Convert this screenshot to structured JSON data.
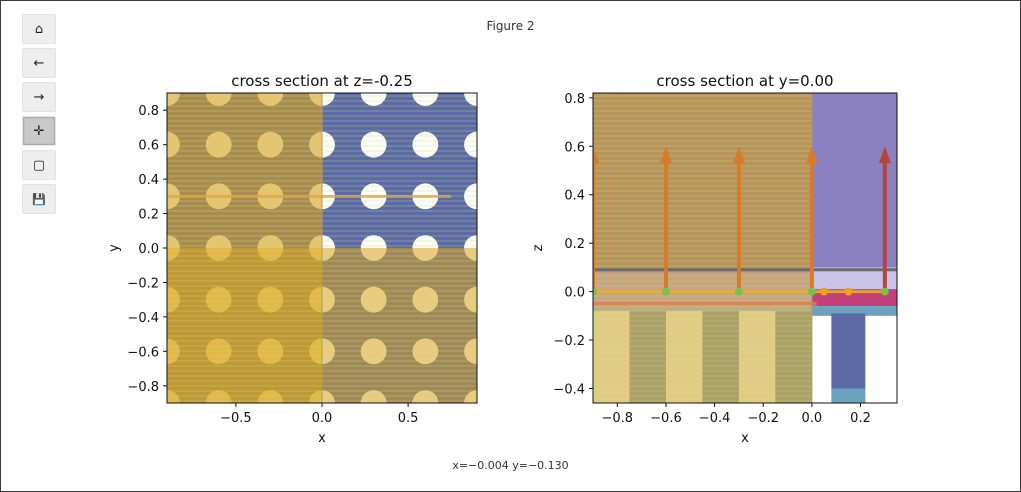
{
  "window": {
    "title": "Figure 2"
  },
  "toolbar": {
    "buttons": [
      {
        "name": "home-button",
        "icon": "home-icon",
        "glyph": "⌂"
      },
      {
        "name": "back-button",
        "icon": "arrow-left-icon",
        "glyph": "←"
      },
      {
        "name": "forward-button",
        "icon": "arrow-right-icon",
        "glyph": "→"
      },
      {
        "name": "pan-button",
        "icon": "move-icon",
        "glyph": "✛"
      },
      {
        "name": "zoom-button",
        "icon": "zoom-rect-icon",
        "glyph": "▢"
      },
      {
        "name": "save-button",
        "icon": "save-icon",
        "glyph": "💾"
      }
    ]
  },
  "status": {
    "coords": "x=−0.004 y=−0.130"
  },
  "chart_data": [
    {
      "type": "heatmap",
      "title": "cross section at z=-0.25",
      "xlabel": "x",
      "ylabel": "y",
      "xlim": [
        -0.9,
        0.9
      ],
      "ylim": [
        -0.9,
        0.9
      ],
      "xticks": [
        -0.5,
        0.0,
        0.5
      ],
      "xtick_labels": [
        "−0.5",
        "0.0",
        "0.5"
      ],
      "yticks": [
        -0.8,
        -0.6,
        -0.4,
        -0.2,
        0.0,
        0.2,
        0.4,
        0.6,
        0.8
      ],
      "ytick_labels": [
        "−0.8",
        "−0.6",
        "−0.4",
        "−0.2",
        "0.0",
        "0.2",
        "0.4",
        "0.6",
        "0.8"
      ],
      "hole_centers_x": [
        -0.9,
        -0.6,
        -0.3,
        0.0,
        0.3,
        0.6,
        0.9
      ],
      "hole_centers_y": [
        -0.9,
        -0.6,
        -0.3,
        0.0,
        0.3,
        0.6,
        0.9
      ],
      "hole_radius": 0.075,
      "colors": {
        "slab": "#5b6aa8",
        "hole": "#ffffff",
        "overlay": "#d8a01a"
      }
    },
    {
      "type": "heatmap",
      "title": "cross section at y=0.00",
      "xlabel": "x",
      "ylabel": "z",
      "xlim": [
        -0.9,
        0.35
      ],
      "ylim": [
        -0.46,
        0.82
      ],
      "xticks": [
        -0.8,
        -0.6,
        -0.4,
        -0.2,
        0.0,
        0.2
      ],
      "xtick_labels": [
        "−0.8",
        "−0.6",
        "−0.4",
        "−0.2",
        "0.0",
        "0.2"
      ],
      "yticks": [
        -0.4,
        -0.2,
        0.0,
        0.2,
        0.4,
        0.6,
        0.8
      ],
      "ytick_labels": [
        "−0.4",
        "−0.2",
        "0.0",
        "0.2",
        "0.4",
        "0.6",
        "0.8"
      ],
      "arrows_x": [
        -0.9,
        -0.6,
        -0.3,
        0.0,
        0.3
      ],
      "points_x": [
        -0.9,
        -0.6,
        -0.3,
        0.0,
        0.3
      ],
      "colors": {
        "region": "#8b80c0",
        "arrow": "#b5443f",
        "point": "#7cc04a",
        "overlay": "#d8a01a"
      }
    }
  ]
}
